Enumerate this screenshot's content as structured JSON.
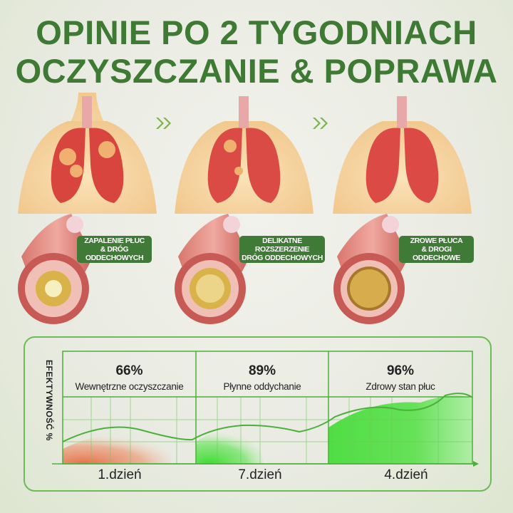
{
  "title": {
    "line1": "OPINIE PO 2 TYGODNIACH",
    "line2": "OCZYSZCZANIE & POPRAWA"
  },
  "stages": [
    {
      "label": [
        "ZAPALENIE PŁUC",
        "& DRÓG",
        "ODDECHOWYCH"
      ]
    },
    {
      "label": [
        "DELIKATNE",
        "ROZSZERZENIE",
        "DRÓG ODDECHOWYCH"
      ]
    },
    {
      "label": [
        "ZROWE PŁUCA",
        "& DROGI",
        "ODDECHOWE"
      ]
    }
  ],
  "arrow_icon": "double-chevron-right",
  "chart_data": {
    "type": "area",
    "ylabel": "EFEKTYWNOŚĆ %",
    "panels": [
      {
        "value": "66%",
        "description": "Wewnętrzne oczyszczanie",
        "day": "1.dzień",
        "color": "#e8704a"
      },
      {
        "value": "89%",
        "description": "Płynne oddychanie",
        "day": "7.dzień",
        "color": "#3fdc32"
      },
      {
        "value": "96%",
        "description": "Zdrowy stan płuc",
        "day": "4.dzień",
        "color": "#3fdc32"
      }
    ],
    "grid": true
  },
  "colors": {
    "brand": "#3e7a34",
    "line": "#4caf3c"
  }
}
